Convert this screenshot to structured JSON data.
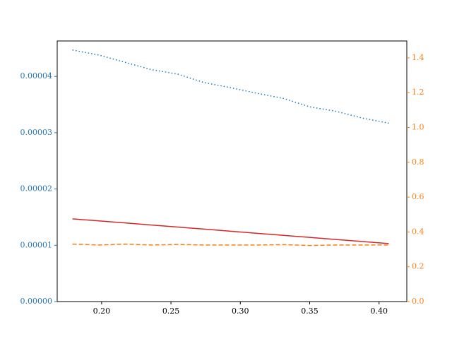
{
  "chart_data": {
    "type": "line",
    "x": [
      0.179,
      0.198,
      0.217,
      0.236,
      0.255,
      0.274,
      0.293,
      0.312,
      0.331,
      0.35,
      0.369,
      0.388,
      0.407
    ],
    "series": [
      {
        "color": "#1f77b4",
        "style": "dotted",
        "values": [
          4.47e-05,
          4.38e-05,
          4.25e-05,
          4.12e-05,
          4.04e-05,
          3.89e-05,
          3.8e-05,
          3.7e-05,
          3.61e-05,
          3.46e-05,
          3.38e-05,
          3.26e-05,
          3.17e-05
        ]
      },
      {
        "color": "#d62728",
        "style": "solid",
        "values": [
          1.47e-05,
          1.433e-05,
          1.397e-05,
          1.36e-05,
          1.323e-05,
          1.287e-05,
          1.25e-05,
          1.213e-05,
          1.177e-05,
          1.14e-05,
          1.103e-05,
          1.067e-05,
          1.03e-05
        ]
      },
      {
        "color": "#ff7f0e",
        "style": "dashed",
        "axis": "y2",
        "values": [
          0.33,
          0.325,
          0.33,
          0.325,
          0.328,
          0.325,
          0.325,
          0.325,
          0.327,
          0.322,
          0.325,
          0.325,
          0.325
        ]
      }
    ],
    "xlim": [
      0.168,
      0.42
    ],
    "xticks": [
      {
        "value": 0.2,
        "label": "0.20"
      },
      {
        "value": 0.25,
        "label": "0.25"
      },
      {
        "value": 0.3,
        "label": "0.30"
      },
      {
        "value": 0.35,
        "label": "0.35"
      },
      {
        "value": 0.4,
        "label": "0.40"
      }
    ],
    "ylim": [
      0,
      4.63e-05
    ],
    "yticks": [
      {
        "value": 0,
        "label": "0.00000"
      },
      {
        "value": 1e-05,
        "label": "0.00001"
      },
      {
        "value": 2e-05,
        "label": "0.00002"
      },
      {
        "value": 3e-05,
        "label": "0.00003"
      },
      {
        "value": 4e-05,
        "label": "0.00004"
      }
    ],
    "y_color": "#1f77b4",
    "y2lim": [
      0,
      1.497
    ],
    "y2ticks": [
      {
        "value": 0,
        "label": "0.0"
      },
      {
        "value": 0.2,
        "label": "0.2"
      },
      {
        "value": 0.4,
        "label": "0.4"
      },
      {
        "value": 0.6,
        "label": "0.6"
      },
      {
        "value": 0.8,
        "label": "0.8"
      },
      {
        "value": 1.0,
        "label": "1.0"
      },
      {
        "value": 1.2,
        "label": "1.2"
      },
      {
        "value": 1.4,
        "label": "1.4"
      }
    ],
    "y2_color": "#ff7f0e"
  }
}
